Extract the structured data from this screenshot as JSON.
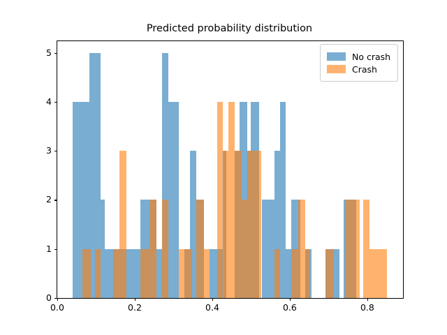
{
  "figure": {
    "title": "Predicted probability distribution"
  },
  "chart_data": {
    "type": "bar",
    "subtype": "overlapping-histograms",
    "title": "Predicted probability distribution",
    "xlabel": "",
    "ylabel": "",
    "xlim": [
      0,
      0.892
    ],
    "ylim": [
      0,
      5.235
    ],
    "x_ticks": [
      0.0,
      0.2,
      0.4,
      0.6,
      0.8
    ],
    "y_ticks": [
      0,
      1,
      2,
      3,
      4,
      5
    ],
    "grid": false,
    "legend_position": "upper right",
    "alpha": 0.6,
    "series": [
      {
        "name": "No crash",
        "color": "#1f77b4",
        "segments_format": [
          "x_start",
          "x_end",
          "count"
        ],
        "segments": [
          [
            0.039,
            0.082,
            4
          ],
          [
            0.082,
            0.111,
            5
          ],
          [
            0.111,
            0.123,
            2
          ],
          [
            0.123,
            0.215,
            1
          ],
          [
            0.215,
            0.256,
            2
          ],
          [
            0.256,
            0.271,
            1
          ],
          [
            0.271,
            0.287,
            5
          ],
          [
            0.287,
            0.314,
            4
          ],
          [
            0.328,
            0.343,
            1
          ],
          [
            0.343,
            0.359,
            3
          ],
          [
            0.359,
            0.379,
            2
          ],
          [
            0.393,
            0.427,
            1
          ],
          [
            0.427,
            0.436,
            3
          ],
          [
            0.458,
            0.47,
            3
          ],
          [
            0.47,
            0.49,
            4
          ],
          [
            0.49,
            0.499,
            3
          ],
          [
            0.499,
            0.521,
            4
          ],
          [
            0.528,
            0.56,
            2
          ],
          [
            0.56,
            0.575,
            3
          ],
          [
            0.575,
            0.589,
            4
          ],
          [
            0.589,
            0.604,
            1
          ],
          [
            0.604,
            0.627,
            2
          ],
          [
            0.64,
            0.656,
            1
          ],
          [
            0.692,
            0.728,
            1
          ],
          [
            0.739,
            0.771,
            2
          ]
        ]
      },
      {
        "name": "Crash",
        "color": "#ff7f0e",
        "segments_format": [
          "x_start",
          "x_end",
          "count"
        ],
        "segments": [
          [
            0.065,
            0.087,
            1
          ],
          [
            0.097,
            0.112,
            1
          ],
          [
            0.144,
            0.16,
            1
          ],
          [
            0.16,
            0.178,
            3
          ],
          [
            0.214,
            0.238,
            1
          ],
          [
            0.238,
            0.256,
            2
          ],
          [
            0.27,
            0.286,
            2
          ],
          [
            0.313,
            0.347,
            1
          ],
          [
            0.358,
            0.379,
            2
          ],
          [
            0.379,
            0.393,
            1
          ],
          [
            0.413,
            0.428,
            4
          ],
          [
            0.428,
            0.441,
            3
          ],
          [
            0.441,
            0.458,
            4
          ],
          [
            0.458,
            0.476,
            3
          ],
          [
            0.476,
            0.49,
            2
          ],
          [
            0.49,
            0.527,
            3
          ],
          [
            0.56,
            0.575,
            1
          ],
          [
            0.604,
            0.622,
            1
          ],
          [
            0.622,
            0.64,
            2
          ],
          [
            0.64,
            0.652,
            1
          ],
          [
            0.692,
            0.713,
            1
          ],
          [
            0.742,
            0.78,
            2
          ],
          [
            0.789,
            0.805,
            2
          ],
          [
            0.805,
            0.85,
            1
          ]
        ]
      }
    ]
  }
}
